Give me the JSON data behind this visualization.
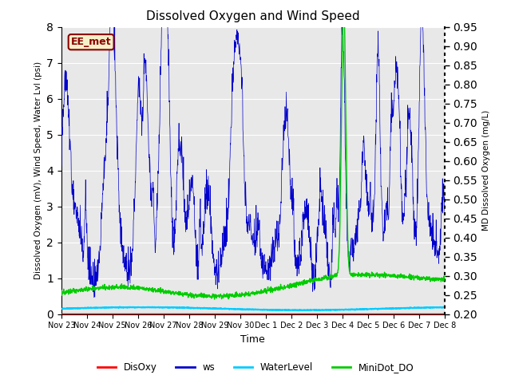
{
  "title": "Dissolved Oxygen and Wind Speed",
  "ylabel_left": "Dissolved Oxygen (mV), Wind Speed, Water Lvl (psi)",
  "ylabel_right": "MD Dissolved Oxygen (mg/L)",
  "xlabel": "Time",
  "ylim_left": [
    0.0,
    8.0
  ],
  "ylim_right": [
    0.2,
    0.95
  ],
  "yticks_left": [
    0.0,
    1.0,
    2.0,
    3.0,
    4.0,
    5.0,
    6.0,
    7.0,
    8.0
  ],
  "yticks_right": [
    0.2,
    0.25,
    0.3,
    0.35,
    0.4,
    0.45,
    0.5,
    0.55,
    0.6,
    0.65,
    0.7,
    0.75,
    0.8,
    0.85,
    0.9,
    0.95
  ],
  "xtick_labels": [
    "Nov 23",
    "Nov 24",
    "Nov 25",
    "Nov 26",
    "Nov 27",
    "Nov 28",
    "Nov 29",
    "Nov 30",
    "Dec 1",
    "Dec 2",
    "Dec 3",
    "Dec 4",
    "Dec 5",
    "Dec 6",
    "Dec 7",
    "Dec 8"
  ],
  "station_label": "EE_met",
  "background_color": "#e8e8e8",
  "disoxy_color": "#ff0000",
  "ws_color": "#0000cc",
  "waterlevel_color": "#00ccff",
  "minidot_color": "#00cc00",
  "legend_items": [
    "DisOxy",
    "ws",
    "WaterLevel",
    "MiniDot_DO"
  ],
  "n_points": 1500,
  "seed": 42,
  "figsize": [
    6.4,
    4.8
  ],
  "dpi": 100
}
